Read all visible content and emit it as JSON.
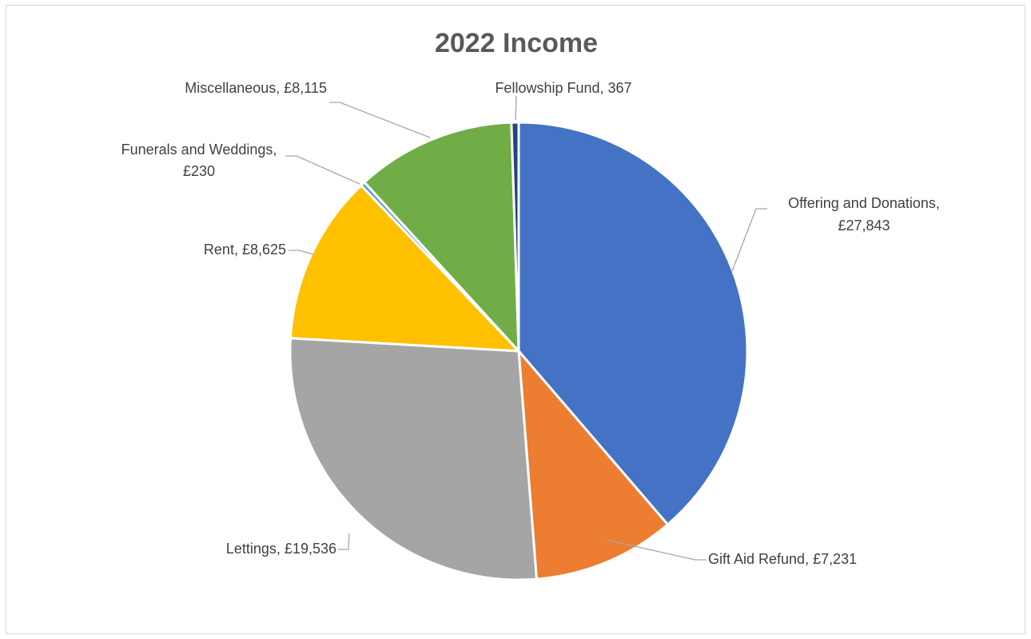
{
  "chart_data": {
    "type": "pie",
    "title": "2022 Income",
    "slices": [
      {
        "name": "Offering and Donations",
        "value": 27843,
        "label_value": "£27,843",
        "color": "#4472c4"
      },
      {
        "name": "Gift Aid Refund",
        "value": 7231,
        "label_value": "£7,231",
        "color": "#ed7d31"
      },
      {
        "name": "Lettings",
        "value": 19536,
        "label_value": "£19,536",
        "color": "#a5a5a5"
      },
      {
        "name": "Rent",
        "value": 8625,
        "label_value": "£8,625",
        "color": "#ffc000"
      },
      {
        "name": "Funerals and Weddings",
        "value": 230,
        "label_value": "£230",
        "color": "#5b9bd5"
      },
      {
        "name": "Miscellaneous",
        "value": 8115,
        "label_value": "£8,115",
        "color": "#70ad47"
      },
      {
        "name": "Fellowship Fund",
        "value": 367,
        "label_value": "367",
        "color": "#264478"
      }
    ],
    "data_labels": [
      "Offering and Donations,",
      "£27,843",
      "Gift Aid Refund, £7,231",
      "Lettings, £19,536",
      "Rent, £8,625",
      "Funerals and Weddings,",
      "£230",
      "Miscellaneous, £8,115",
      "Fellowship Fund, 367"
    ],
    "legend": "none"
  }
}
